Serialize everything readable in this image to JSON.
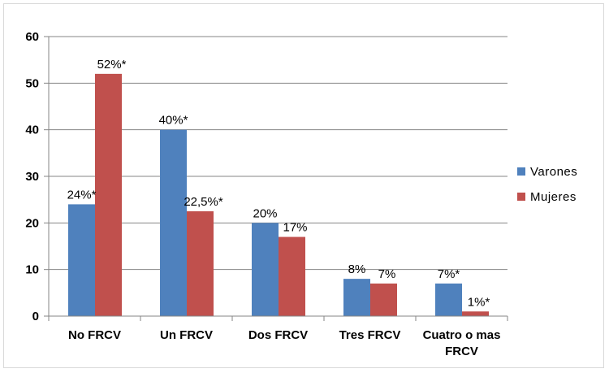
{
  "chart_data": {
    "type": "bar",
    "categories": [
      "No FRCV",
      "Un FRCV",
      "Dos FRCV",
      "Tres FRCV",
      "Cuatro o mas FRCV"
    ],
    "category_lines": [
      [
        "No FRCV"
      ],
      [
        "Un FRCV"
      ],
      [
        "Dos FRCV"
      ],
      [
        "Tres FRCV"
      ],
      [
        "Cuatro o mas",
        "FRCV"
      ]
    ],
    "series": [
      {
        "name": "Varones",
        "color": "#4f81bd",
        "values": [
          24,
          40,
          20,
          8,
          7
        ],
        "labels": [
          "24%*",
          "40%*",
          "20%",
          "8%",
          "7%*"
        ]
      },
      {
        "name": "Mujeres",
        "color": "#c0504d",
        "values": [
          52,
          22.5,
          17,
          7,
          1
        ],
        "labels": [
          "52%*",
          "22,5%*",
          "17%",
          "7%",
          "1%*"
        ]
      }
    ],
    "yticks": [
      "0",
      "10",
      "20",
      "30",
      "40",
      "50",
      "60"
    ],
    "ylim": [
      0,
      60
    ],
    "grid": true,
    "legend_position": "right"
  }
}
